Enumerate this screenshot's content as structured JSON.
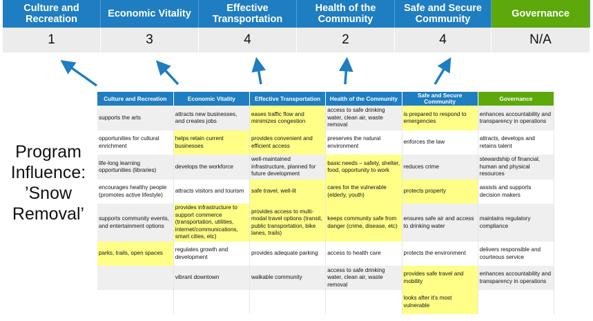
{
  "header": {
    "columns": [
      "Culture and Recreation",
      "Economic Vitality",
      "Effective Transportation",
      "Health of the Community",
      "Safe and Secure Community",
      "Governance"
    ],
    "scores": [
      "1",
      "3",
      "4",
      "2",
      "4",
      "N/A"
    ]
  },
  "side_label": {
    "line1": "Program",
    "line2": "Influence:",
    "line3": "’Snow",
    "line4": "Removal’"
  },
  "colors": {
    "header_blue": "#1f7dc1",
    "governance_green": "#5da80b",
    "highlight_yellow": "#ffff88",
    "arrow_blue": "#1f7dc1"
  },
  "table": {
    "columns": [
      "Culture and Recreation",
      "Economic Vitality",
      "Effective Transportation",
      "Health of the Community",
      "Safe and Secure Community",
      "Governance"
    ],
    "rows": [
      [
        "supports the arts",
        "attracts new businesses, and creates jobs",
        "eases traffic flow and minimizes congestion",
        "access to safe drinking water, clean air, waste removal",
        "is prepared to respond to emergencies",
        "enhances accountability and transparency in operations"
      ],
      [
        "opportunities for cultural enrichment",
        "helps retain current businesses",
        "provides convenient and efficient access",
        "preserves the natural environment",
        "enforces the law",
        "attracts, develops and retains talent"
      ],
      [
        "life-long learning opportunities (libraries)",
        "develops the workforce",
        "well-maintained infrastructure, planned for future development",
        "basic needs – safety, shelter, food, opportunity to work",
        "reduces crime",
        "stewardship of financial, human and physical resources"
      ],
      [
        "encourages healthy people (promotes active lifestyle)",
        "attracts visitors and tourism",
        "safe travel, well-lit",
        "cares for the vulnerable (elderly, youth)",
        "protects property",
        "assists and supports decision makers"
      ],
      [
        "supports community events, and entertainment options",
        "provides infrastructure to support commerce (transportation, utilities, internet/communications, smart cities, etc)",
        "provides access to multi-modal travel options (transit, public transportation, bike lanes, trails)",
        "keeps community safe from danger (crime, disease, etc)",
        "ensures safe air and access to drinking water",
        "maintains regulatory compliance"
      ],
      [
        "parks, trails, open spaces",
        "regulates growth and development",
        "provides adequate parking",
        "access to health care",
        "protects the environment",
        "delivers responsible and courteous service"
      ],
      [
        "",
        "vibrant downtown",
        "walkable community",
        "access to safe drinking water, clean air, waste removal",
        "provides safe travel and mobility",
        "enhances accountability and transparency in operations"
      ],
      [
        "",
        "",
        "",
        "",
        "looks after it’s most vulnerable",
        ""
      ]
    ],
    "highlighted": [
      [
        2,
        4
      ],
      [
        1,
        2
      ],
      [
        3
      ],
      [
        2,
        3,
        4
      ],
      [
        1,
        2,
        3
      ],
      [
        0
      ],
      [
        4
      ],
      [
        4
      ]
    ]
  }
}
